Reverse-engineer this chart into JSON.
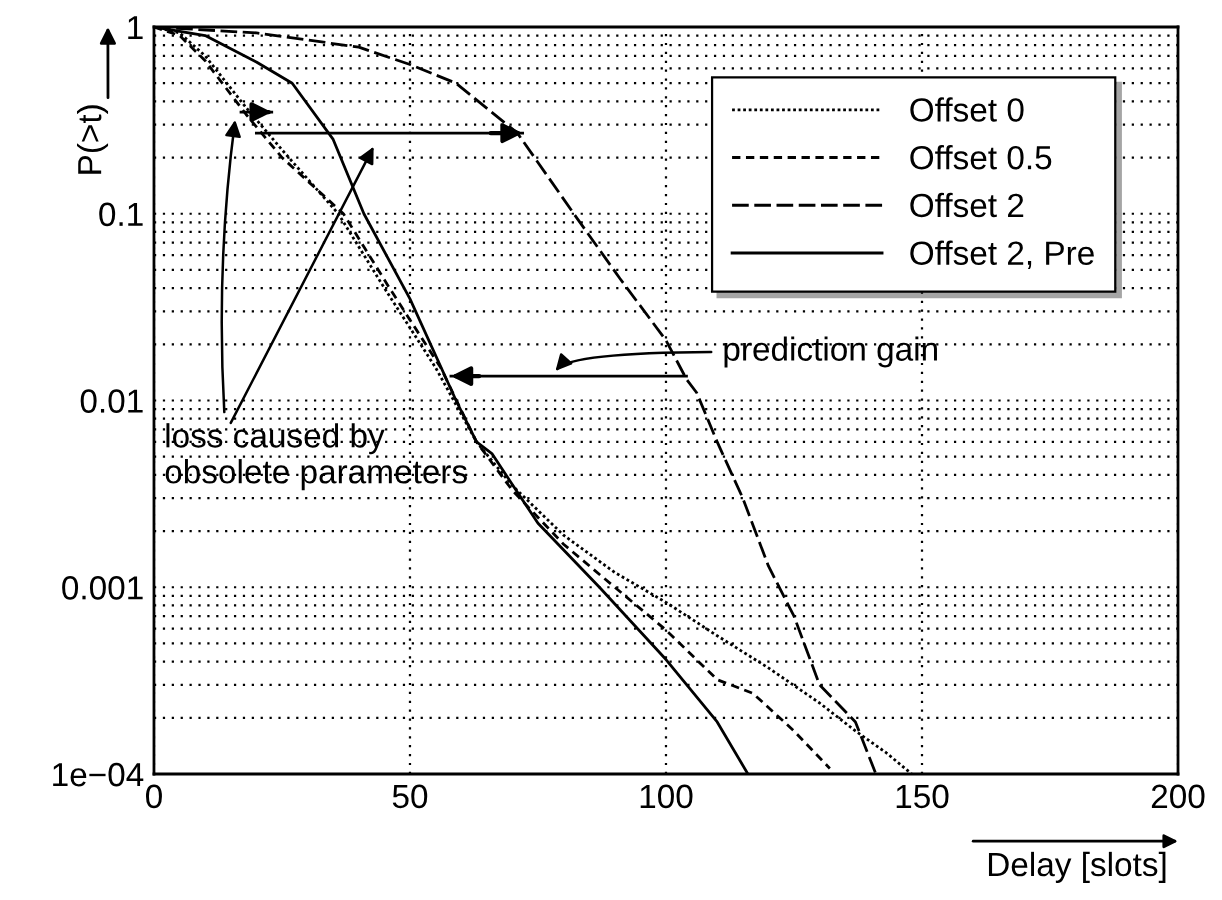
{
  "chart_data": {
    "type": "line",
    "xlabel": "Delay [slots]",
    "ylabel": "P(>t)",
    "log": "y",
    "xlim": [
      0,
      200
    ],
    "ylim": [
      0.0001,
      1
    ],
    "xticks": [
      0,
      50,
      100,
      150,
      200
    ],
    "yticks": [
      {
        "value": 0.0001,
        "label": "1e−04"
      },
      0.001,
      0.01,
      0.1,
      1
    ],
    "grid": true,
    "legend": "top right",
    "marker": "none",
    "series": [
      {
        "name": "Offset 0",
        "color": "#000000",
        "line_style": "dotted",
        "x": [
          0,
          5,
          10,
          18,
          25,
          36,
          45,
          55,
          63,
          70,
          80,
          90,
          100,
          110,
          120,
          130,
          137,
          143,
          148
        ],
        "values": [
          1,
          0.93,
          0.7,
          0.37,
          0.22,
          0.1,
          0.04,
          0.015,
          0.006,
          0.0035,
          0.0019,
          0.0012,
          0.00083,
          0.00055,
          0.00037,
          0.00024,
          0.00017,
          0.00013,
          0.0001
        ]
      },
      {
        "name": "Offset 0.5",
        "color": "#000000",
        "line_style": "dashed",
        "x": [
          0,
          5,
          10,
          18,
          25,
          37,
          46,
          56,
          63,
          70,
          80,
          90,
          100,
          110,
          117,
          125,
          132
        ],
        "values": [
          1,
          0.9,
          0.66,
          0.34,
          0.2,
          0.1,
          0.04,
          0.015,
          0.006,
          0.0033,
          0.0017,
          0.001,
          0.00059,
          0.00032,
          0.00027,
          0.00017,
          0.000107
        ]
      },
      {
        "name": "Offset 2",
        "color": "#000000",
        "line_style": "dashed",
        "x": [
          0,
          20,
          40,
          50,
          59,
          71,
          82,
          91,
          100,
          104,
          106,
          110,
          115,
          120,
          125,
          130,
          137,
          141
        ],
        "values": [
          1,
          0.93,
          0.78,
          0.63,
          0.5,
          0.27,
          0.1,
          0.045,
          0.021,
          0.013,
          0.011,
          0.006,
          0.003,
          0.0013,
          0.0007,
          0.0003,
          0.00019,
          0.0001
        ]
      },
      {
        "name": "Offset 2, Pre",
        "color": "#000000",
        "line_style": "solid",
        "x": [
          0,
          10,
          20,
          27,
          35,
          41,
          50,
          59,
          63,
          66,
          75,
          87,
          100,
          110,
          116
        ],
        "values": [
          1,
          0.9,
          0.65,
          0.5,
          0.25,
          0.1,
          0.035,
          0.01,
          0.006,
          0.0052,
          0.0022,
          0.001,
          0.00041,
          0.00019,
          0.0001
        ]
      },
      {
        "color": "#000000",
        "line_style": "solid",
        "x": [
          17,
          23
        ],
        "values": [
          0.35,
          0.35
        ]
      },
      {
        "color": "#000000",
        "line_style": "solid",
        "x": [
          20,
          72
        ],
        "values": [
          0.27,
          0.27
        ]
      },
      {
        "color": "#000000",
        "line_style": "solid",
        "x": [
          104,
          58
        ],
        "values": [
          0.0135,
          0.0135
        ]
      }
    ],
    "annotations": [
      {
        "text": "loss caused by\nobsolete parameters",
        "x": 16,
        "y": 0.34
      },
      {
        "text": "prediction gain",
        "x": 78,
        "y": 0.0135
      }
    ]
  }
}
